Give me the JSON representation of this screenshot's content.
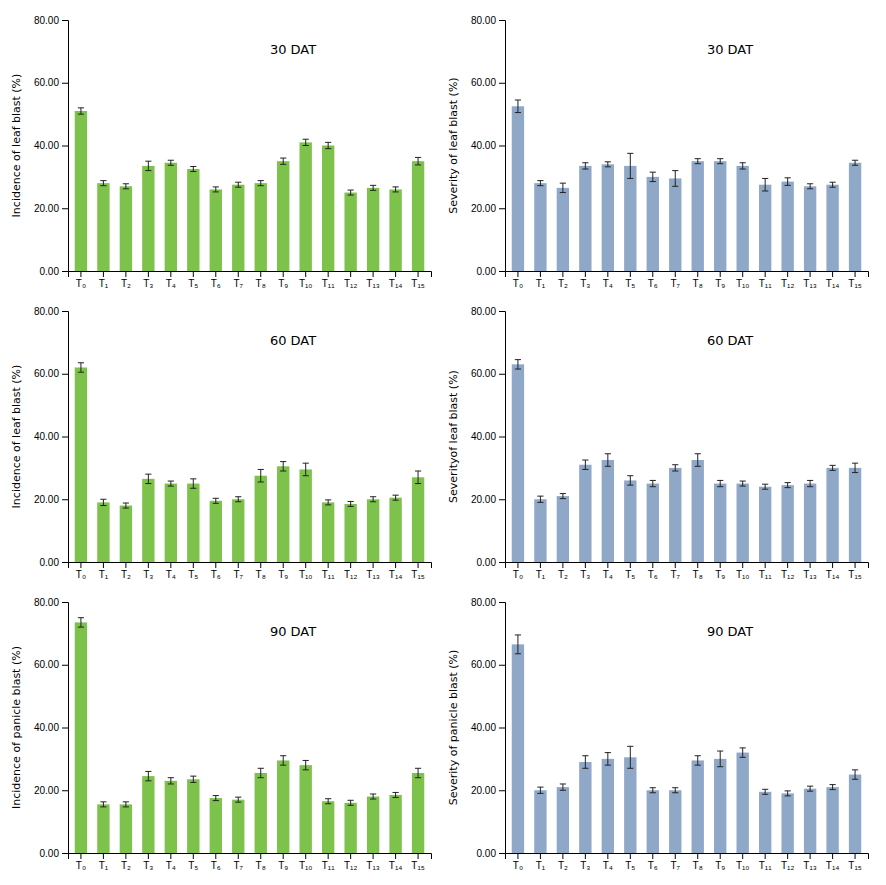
{
  "chart_data": [
    {
      "type": "bar",
      "title": "30 DAT",
      "ylabel": "Incidence of leaf blast (%)",
      "color": "#7dc24b",
      "categories": [
        "T₀",
        "T₁",
        "T₂",
        "T₃",
        "T₄",
        "T₅",
        "T₆",
        "T₇",
        "T₈",
        "T₉",
        "T₁₀",
        "T₁₁",
        "T₁₂",
        "T₁₃",
        "T₁₄",
        "T₁₅"
      ],
      "values": [
        51.0,
        28.0,
        27.0,
        33.5,
        34.5,
        32.5,
        26.0,
        27.5,
        28.0,
        35.0,
        41.0,
        40.0,
        25.0,
        26.5,
        26.0,
        35.0
      ],
      "errors": [
        1.0,
        0.8,
        0.8,
        1.5,
        0.8,
        0.8,
        0.8,
        0.8,
        0.8,
        1.0,
        1.0,
        1.0,
        0.8,
        0.8,
        0.8,
        1.2
      ],
      "ylim": [
        0,
        80
      ],
      "yticks": [
        {
          "value": 0,
          "label": "0.00"
        },
        {
          "value": 20,
          "label": "20.00"
        },
        {
          "value": 40,
          "label": "40.00"
        },
        {
          "value": 60,
          "label": "60.00"
        },
        {
          "value": 80,
          "label": "80.00"
        }
      ]
    },
    {
      "type": "bar",
      "title": "30 DAT",
      "ylabel": "Severity of leaf blast (%)",
      "color": "#8fa8c8",
      "categories": [
        "T₀",
        "T₁",
        "T₂",
        "T₃",
        "T₄",
        "T₅",
        "T₆",
        "T₇",
        "T₈",
        "T₉",
        "T₁₀",
        "T₁₁",
        "T₁₂",
        "T₁₃",
        "T₁₄",
        "T₁₅"
      ],
      "values": [
        52.5,
        28.0,
        26.5,
        33.5,
        34.0,
        33.5,
        30.0,
        29.5,
        35.0,
        35.0,
        33.5,
        27.5,
        28.5,
        27.0,
        27.5,
        34.5
      ],
      "errors": [
        2.0,
        0.8,
        1.5,
        1.0,
        0.8,
        4.0,
        1.5,
        2.5,
        0.8,
        0.8,
        1.0,
        2.0,
        1.2,
        0.8,
        0.8,
        0.8
      ],
      "ylim": [
        0,
        80
      ],
      "yticks": [
        {
          "value": 0,
          "label": "0.00"
        },
        {
          "value": 20,
          "label": "20.00"
        },
        {
          "value": 40,
          "label": "40.00"
        },
        {
          "value": 60,
          "label": "60.00"
        },
        {
          "value": 80,
          "label": "80.00"
        }
      ]
    },
    {
      "type": "bar",
      "title": "60 DAT",
      "ylabel": "Incidence of leaf blast  (%)",
      "color": "#7dc24b",
      "categories": [
        "T₀",
        "T₁",
        "T₂",
        "T₃",
        "T₄",
        "T₅",
        "T₆",
        "T₇",
        "T₈",
        "T₉",
        "T₁₀",
        "T₁₁",
        "T₁₂",
        "T₁₃",
        "T₁₄",
        "T₁₅"
      ],
      "values": [
        62.0,
        19.0,
        18.0,
        26.5,
        25.0,
        25.0,
        19.5,
        20.0,
        27.5,
        30.5,
        29.5,
        19.0,
        18.5,
        20.0,
        20.5,
        27.0
      ],
      "errors": [
        1.5,
        1.0,
        0.8,
        1.5,
        0.8,
        1.5,
        0.8,
        0.8,
        2.0,
        1.5,
        2.0,
        0.8,
        0.8,
        0.8,
        0.8,
        2.0
      ],
      "ylim": [
        0,
        80
      ],
      "yticks": [
        {
          "value": 0,
          "label": "0.00"
        },
        {
          "value": 20,
          "label": "20.00"
        },
        {
          "value": 40,
          "label": "40.00"
        },
        {
          "value": 60,
          "label": "60.00"
        },
        {
          "value": 80,
          "label": "80.00"
        }
      ]
    },
    {
      "type": "bar",
      "title": "60 DAT",
      "ylabel": "Severityof leaf blast (%)",
      "color": "#8fa8c8",
      "categories": [
        "T₀",
        "T₁",
        "T₂",
        "T₃",
        "T₄",
        "T₅",
        "T₆",
        "T₇",
        "T₈",
        "T₉",
        "T₁₀",
        "T₁₁",
        "T₁₂",
        "T₁₃",
        "T₁₄",
        "T₁₅"
      ],
      "values": [
        63.0,
        20.0,
        21.0,
        31.0,
        32.5,
        26.0,
        25.0,
        30.0,
        32.5,
        25.0,
        25.0,
        24.0,
        24.5,
        25.0,
        30.0,
        30.0
      ],
      "errors": [
        1.5,
        1.0,
        0.8,
        1.5,
        2.0,
        1.5,
        1.0,
        1.0,
        2.0,
        1.0,
        0.8,
        0.8,
        0.8,
        1.0,
        0.8,
        1.5
      ],
      "ylim": [
        0,
        80
      ],
      "yticks": [
        {
          "value": 0,
          "label": "0.00"
        },
        {
          "value": 20,
          "label": "20.00"
        },
        {
          "value": 40,
          "label": "40.00"
        },
        {
          "value": 60,
          "label": "60.00"
        },
        {
          "value": 80,
          "label": "80.00"
        }
      ]
    },
    {
      "type": "bar",
      "title": "90 DAT",
      "ylabel": "Incidence of panicle blast (%)",
      "color": "#7dc24b",
      "categories": [
        "T₀",
        "T₁",
        "T₂",
        "T₃",
        "T₄",
        "T₅",
        "T₆",
        "T₇",
        "T₈",
        "T₉",
        "T₁₀",
        "T₁₁",
        "T₁₂",
        "T₁₃",
        "T₁₄",
        "T₁₅"
      ],
      "values": [
        73.5,
        15.5,
        15.5,
        24.5,
        23.0,
        23.5,
        17.5,
        17.0,
        25.5,
        29.5,
        28.0,
        16.5,
        16.0,
        18.0,
        18.5,
        25.5
      ],
      "errors": [
        1.5,
        0.8,
        0.8,
        1.5,
        1.0,
        1.0,
        0.8,
        0.8,
        1.5,
        1.5,
        1.5,
        0.8,
        0.8,
        0.8,
        0.8,
        1.5
      ],
      "ylim": [
        0,
        80
      ],
      "yticks": [
        {
          "value": 0,
          "label": "0.00"
        },
        {
          "value": 20,
          "label": "20.00"
        },
        {
          "value": 40,
          "label": "40.00"
        },
        {
          "value": 60,
          "label": "60.00"
        },
        {
          "value": 80,
          "label": "80.00"
        }
      ]
    },
    {
      "type": "bar",
      "title": "90 DAT",
      "ylabel": "Severity of panicle blast  (%)",
      "color": "#8fa8c8",
      "categories": [
        "T₀",
        "T₁",
        "T₂",
        "T₃",
        "T₄",
        "T₅",
        "T₆",
        "T₇",
        "T₈",
        "T₉",
        "T₁₀",
        "T₁₁",
        "T₁₂",
        "T₁₃",
        "T₁₄",
        "T₁₅"
      ],
      "values": [
        66.5,
        20.0,
        21.0,
        29.0,
        30.0,
        30.5,
        20.0,
        20.0,
        29.5,
        30.0,
        32.0,
        19.5,
        19.0,
        20.5,
        21.0,
        25.0
      ],
      "errors": [
        3.0,
        1.0,
        1.0,
        2.0,
        2.0,
        3.5,
        0.8,
        0.8,
        1.5,
        2.5,
        1.5,
        0.8,
        0.8,
        0.8,
        0.8,
        1.5
      ],
      "ylim": [
        0,
        80
      ],
      "yticks": [
        {
          "value": 0,
          "label": "0.00"
        },
        {
          "value": 20,
          "label": "20.00"
        },
        {
          "value": 40,
          "label": "40.00"
        },
        {
          "value": 60,
          "label": "60.00"
        },
        {
          "value": 80,
          "label": "80.00"
        }
      ]
    }
  ]
}
